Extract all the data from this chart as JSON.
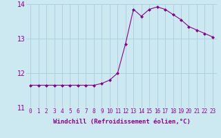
{
  "x": [
    0,
    1,
    2,
    3,
    4,
    5,
    6,
    7,
    8,
    9,
    10,
    11,
    12,
    13,
    14,
    15,
    16,
    17,
    18,
    19,
    20,
    21,
    22,
    23
  ],
  "y": [
    11.65,
    11.65,
    11.65,
    11.65,
    11.65,
    11.65,
    11.65,
    11.65,
    11.65,
    11.7,
    11.8,
    12.0,
    12.85,
    13.85,
    13.65,
    13.85,
    13.92,
    13.85,
    13.7,
    13.55,
    13.35,
    13.25,
    13.15,
    13.05
  ],
  "line_color": "#8b008b",
  "marker": "D",
  "marker_size": 2,
  "bg_color": "#cce8f0",
  "grid_color": "#aaccdd",
  "xlabel": "Windchill (Refroidissement éolien,°C)",
  "xlabel_color": "#8b008b",
  "xlim": [
    -0.5,
    23.5
  ],
  "ylim": [
    11.0,
    14.0
  ],
  "yticks": [
    11,
    12,
    13,
    14
  ],
  "xtick_labels": [
    "0",
    "1",
    "2",
    "3",
    "4",
    "5",
    "6",
    "7",
    "8",
    "9",
    "10",
    "11",
    "12",
    "13",
    "14",
    "15",
    "16",
    "17",
    "18",
    "19",
    "20",
    "21",
    "22",
    "23"
  ],
  "tick_color": "#8b008b",
  "tick_label_size": 5.5,
  "xlabel_size": 6.5,
  "ytick_label_size": 7
}
